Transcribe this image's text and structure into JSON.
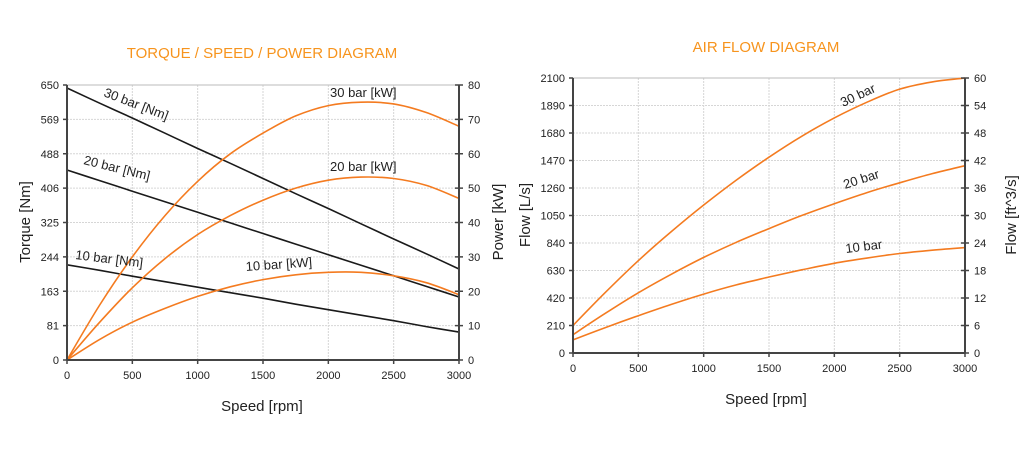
{
  "chart_data": [
    {
      "type": "line",
      "title": "TORQUE / SPEED / POWER DIAGRAM",
      "xlabel": "Speed [rpm]",
      "ylabel": "Torque [Nm]",
      "y2label": "Power [kW]",
      "xlim": [
        0,
        3000
      ],
      "ylim": [
        0,
        650
      ],
      "y2lim": [
        0,
        80
      ],
      "xticks": [
        "0",
        "500",
        "1000",
        "1500",
        "2000",
        "2500",
        "3000"
      ],
      "yticks": [
        "0",
        "81",
        "163",
        "244",
        "325",
        "406",
        "488",
        "569",
        "650"
      ],
      "y2ticks": [
        "0",
        "10",
        "20",
        "30",
        "40",
        "50",
        "60",
        "70",
        "80"
      ],
      "grid": true,
      "x": [
        0,
        250,
        500,
        750,
        1000,
        1250,
        1500,
        1750,
        2000,
        2250,
        2500,
        2750,
        3000
      ],
      "series": [
        {
          "name": "30 bar [Nm]",
          "label": "30 bar [Nm]",
          "axis": "left",
          "color": "#1a1a1a",
          "values": [
            643,
            607,
            572,
            536,
            500,
            465,
            429,
            393,
            358,
            322,
            286,
            251,
            215
          ]
        },
        {
          "name": "20 bar [Nm]",
          "label": "20 bar [Nm]",
          "axis": "left",
          "color": "#1a1a1a",
          "values": [
            449,
            424,
            399,
            374,
            349,
            324,
            299,
            274,
            249,
            224,
            199,
            174,
            149
          ]
        },
        {
          "name": "10 bar [Nm]",
          "label": "10 bar [Nm]",
          "axis": "left",
          "color": "#1a1a1a",
          "values": [
            225,
            212,
            198,
            185,
            172,
            159,
            146,
            132,
            119,
            106,
            93,
            79,
            66
          ]
        },
        {
          "name": "30 bar [kW]",
          "label": "30 bar [kW]",
          "axis": "right",
          "color": "#f47b20",
          "values": [
            0,
            16,
            30,
            42,
            52,
            60,
            66,
            71,
            74,
            75,
            74.5,
            72,
            68
          ]
        },
        {
          "name": "20 bar [kW]",
          "label": "20 bar [kW]",
          "axis": "right",
          "color": "#f47b20",
          "values": [
            0,
            11,
            21,
            29.5,
            36.5,
            42,
            46.5,
            50,
            52.3,
            53.2,
            52.8,
            50.8,
            47
          ]
        },
        {
          "name": "10 bar [kW]",
          "label": "10 bar [kW]",
          "axis": "right",
          "color": "#f47b20",
          "values": [
            0,
            6,
            11,
            15,
            18.5,
            21.3,
            23.4,
            24.8,
            25.5,
            25.5,
            24.5,
            22.5,
            19
          ]
        }
      ]
    },
    {
      "type": "line",
      "title": "AIR FLOW DIAGRAM",
      "xlabel": "Speed [rpm]",
      "ylabel": "Flow [L/s]",
      "y2label": "Flow [ft^3/s]",
      "xlim": [
        0,
        3000
      ],
      "ylim": [
        0,
        2100
      ],
      "y2lim": [
        0,
        60
      ],
      "xticks": [
        "0",
        "500",
        "1000",
        "1500",
        "2000",
        "2500",
        "3000"
      ],
      "yticks": [
        "0",
        "210",
        "420",
        "630",
        "840",
        "1050",
        "1260",
        "1470",
        "1680",
        "1890",
        "2100"
      ],
      "y2ticks": [
        "0",
        "6",
        "12",
        "18",
        "24",
        "30",
        "36",
        "42",
        "48",
        "54",
        "60"
      ],
      "grid": true,
      "x": [
        0,
        250,
        500,
        750,
        1000,
        1250,
        1500,
        1750,
        2000,
        2250,
        2500,
        2750,
        3000
      ],
      "series": [
        {
          "name": "30 bar",
          "label": "30 bar",
          "color": "#f47b20",
          "values": [
            210,
            465,
            705,
            925,
            1130,
            1320,
            1495,
            1655,
            1795,
            1915,
            2015,
            2070,
            2100
          ]
        },
        {
          "name": "20 bar",
          "label": "20 bar",
          "color": "#f47b20",
          "values": [
            140,
            305,
            460,
            600,
            730,
            845,
            950,
            1050,
            1140,
            1225,
            1300,
            1370,
            1430
          ]
        },
        {
          "name": "10 bar",
          "label": "10 bar",
          "color": "#f47b20",
          "values": [
            100,
            195,
            285,
            370,
            450,
            520,
            580,
            635,
            685,
            725,
            760,
            785,
            805
          ]
        }
      ]
    }
  ]
}
